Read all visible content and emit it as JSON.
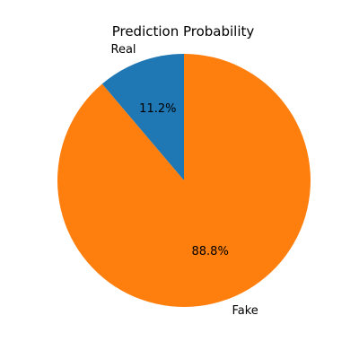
{
  "chart_data": {
    "type": "pie",
    "title": "Prediction Probability",
    "slices": [
      {
        "label": "Real",
        "value": 11.2,
        "display": "11.2%",
        "color": "#1f77b4"
      },
      {
        "label": "Fake",
        "value": 88.8,
        "display": "88.8%",
        "color": "#ff7f0e"
      }
    ],
    "start_angle_deg": 90,
    "direction": "counterclockwise",
    "legend": "none"
  }
}
